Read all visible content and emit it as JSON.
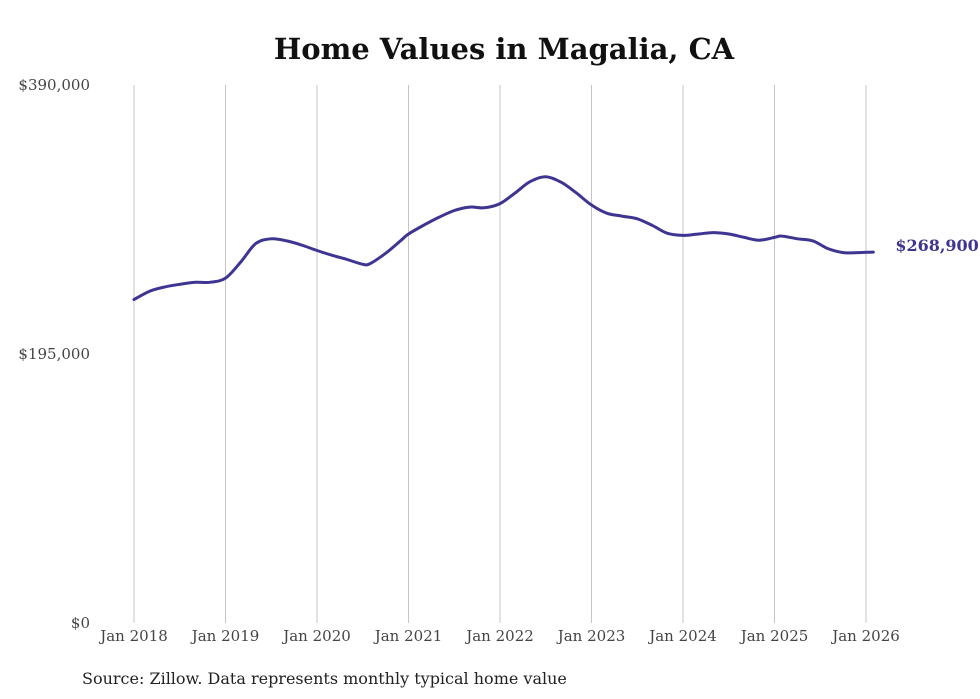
{
  "chart_data": {
    "type": "line",
    "title": "Home Values in Magalia, CA",
    "xlabel": "",
    "ylabel": "",
    "ylim": [
      0,
      390000
    ],
    "y_ticks": [
      {
        "value": 0,
        "label": "$0"
      },
      {
        "value": 195000,
        "label": "$195,000"
      },
      {
        "value": 390000,
        "label": "$390,000"
      }
    ],
    "x_ticks": [
      {
        "value": 2018,
        "label": "Jan 2018"
      },
      {
        "value": 2019,
        "label": "Jan 2019"
      },
      {
        "value": 2020,
        "label": "Jan 2020"
      },
      {
        "value": 2021,
        "label": "Jan 2021"
      },
      {
        "value": 2022,
        "label": "Jan 2022"
      },
      {
        "value": 2023,
        "label": "Jan 2023"
      },
      {
        "value": 2024,
        "label": "Jan 2024"
      },
      {
        "value": 2025,
        "label": "Jan 2025"
      },
      {
        "value": 2026,
        "label": "Jan 2026"
      }
    ],
    "xlim": [
      2018,
      2026.08
    ],
    "grid": "vertical",
    "series": [
      {
        "name": "Typical home value",
        "color": "#3d3591",
        "points": [
          [
            2018.0,
            234500
          ],
          [
            2018.17,
            240500
          ],
          [
            2018.33,
            243500
          ],
          [
            2018.5,
            245500
          ],
          [
            2018.67,
            247000
          ],
          [
            2018.83,
            247000
          ],
          [
            2019.0,
            250000
          ],
          [
            2019.17,
            262000
          ],
          [
            2019.33,
            275000
          ],
          [
            2019.5,
            278500
          ],
          [
            2019.67,
            277000
          ],
          [
            2019.83,
            274000
          ],
          [
            2020.0,
            270000
          ],
          [
            2020.17,
            266500
          ],
          [
            2020.33,
            263500
          ],
          [
            2020.5,
            260000
          ],
          [
            2020.58,
            260500
          ],
          [
            2020.75,
            268000
          ],
          [
            2020.92,
            277500
          ],
          [
            2021.0,
            282000
          ],
          [
            2021.17,
            288500
          ],
          [
            2021.33,
            294000
          ],
          [
            2021.5,
            299000
          ],
          [
            2021.67,
            301500
          ],
          [
            2021.83,
            301000
          ],
          [
            2022.0,
            304000
          ],
          [
            2022.17,
            312000
          ],
          [
            2022.33,
            320000
          ],
          [
            2022.5,
            323500
          ],
          [
            2022.67,
            319500
          ],
          [
            2022.83,
            312000
          ],
          [
            2023.0,
            303000
          ],
          [
            2023.17,
            297000
          ],
          [
            2023.33,
            295000
          ],
          [
            2023.5,
            293000
          ],
          [
            2023.67,
            288000
          ],
          [
            2023.83,
            282500
          ],
          [
            2024.0,
            281000
          ],
          [
            2024.17,
            282000
          ],
          [
            2024.33,
            283000
          ],
          [
            2024.5,
            282000
          ],
          [
            2024.67,
            279500
          ],
          [
            2024.83,
            277500
          ],
          [
            2025.0,
            279500
          ],
          [
            2025.08,
            280500
          ],
          [
            2025.25,
            278500
          ],
          [
            2025.42,
            277000
          ],
          [
            2025.58,
            271500
          ],
          [
            2025.75,
            268500
          ],
          [
            2025.92,
            268500
          ],
          [
            2026.08,
            268900
          ]
        ],
        "end_label": "$268,900"
      }
    ],
    "source": "Source: Zillow. Data represents monthly typical home value"
  }
}
